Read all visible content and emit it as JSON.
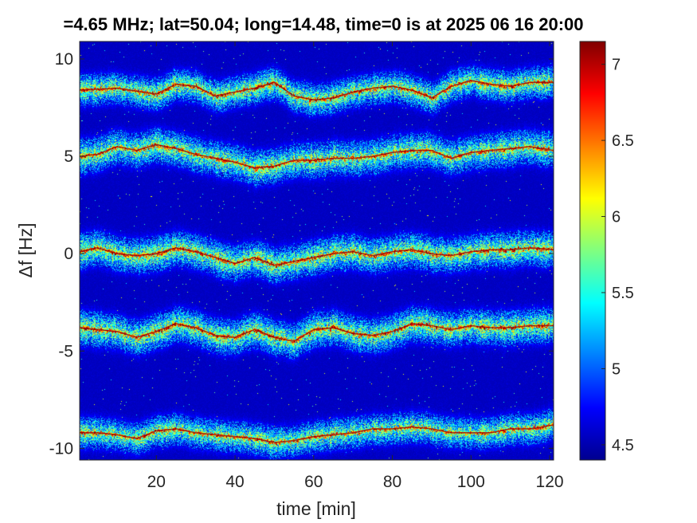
{
  "chart_data": {
    "type": "heatmap",
    "title": "=4.65 MHz;  lat=50.04; long=14.48, time=0 is at 2025 06 16 20:00",
    "xlabel": "time [min]",
    "ylabel": "Δf [Hz]",
    "xlim": [
      0.5,
      121
    ],
    "ylim": [
      -10.6,
      10.9
    ],
    "x_ticks": [
      20,
      40,
      60,
      80,
      100,
      120
    ],
    "y_ticks": [
      10,
      5,
      0,
      -5,
      -10
    ],
    "colorbar": {
      "colormap": "jet",
      "range": [
        4.4,
        7.15
      ],
      "ticks": [
        7,
        6.5,
        6,
        5.5,
        5,
        4.5
      ],
      "background_color": "#00008F"
    },
    "ridges": [
      {
        "name": "",
        "points": [
          [
            0.5,
            8.4
          ],
          [
            10,
            8.5
          ],
          [
            20,
            8.2
          ],
          [
            25,
            8.7
          ],
          [
            30,
            8.6
          ],
          [
            35,
            8.1
          ],
          [
            40,
            8.3
          ],
          [
            45,
            8.5
          ],
          [
            50,
            8.8
          ],
          [
            55,
            8.1
          ],
          [
            60,
            7.9
          ],
          [
            65,
            8.0
          ],
          [
            70,
            8.3
          ],
          [
            75,
            8.5
          ],
          [
            80,
            8.6
          ],
          [
            85,
            8.4
          ],
          [
            90,
            8.0
          ],
          [
            95,
            8.6
          ],
          [
            100,
            8.9
          ],
          [
            105,
            8.7
          ],
          [
            110,
            8.6
          ],
          [
            115,
            8.8
          ],
          [
            121,
            8.8
          ]
        ],
        "width": 0.45,
        "intensity": 1.0
      },
      {
        "name": "",
        "points": [
          [
            0.5,
            5.0
          ],
          [
            5,
            5.1
          ],
          [
            10,
            5.5
          ],
          [
            15,
            5.3
          ],
          [
            20,
            5.6
          ],
          [
            25,
            5.4
          ],
          [
            30,
            5.1
          ],
          [
            35,
            4.9
          ],
          [
            40,
            4.7
          ],
          [
            45,
            4.4
          ],
          [
            50,
            4.5
          ],
          [
            55,
            4.8
          ],
          [
            60,
            4.8
          ],
          [
            65,
            4.9
          ],
          [
            70,
            4.9
          ],
          [
            75,
            5.0
          ],
          [
            80,
            5.2
          ],
          [
            85,
            5.3
          ],
          [
            90,
            5.3
          ],
          [
            95,
            4.9
          ],
          [
            100,
            5.2
          ],
          [
            105,
            5.3
          ],
          [
            110,
            5.4
          ],
          [
            115,
            5.5
          ],
          [
            121,
            5.3
          ]
        ],
        "width": 0.5,
        "intensity": 0.95
      },
      {
        "name": "",
        "points": [
          [
            0.5,
            0.1
          ],
          [
            5,
            0.3
          ],
          [
            10,
            0.0
          ],
          [
            15,
            -0.1
          ],
          [
            20,
            0.0
          ],
          [
            25,
            0.3
          ],
          [
            30,
            0.1
          ],
          [
            35,
            -0.2
          ],
          [
            40,
            -0.5
          ],
          [
            45,
            -0.2
          ],
          [
            50,
            -0.6
          ],
          [
            55,
            -0.4
          ],
          [
            60,
            -0.2
          ],
          [
            65,
            0.0
          ],
          [
            70,
            0.1
          ],
          [
            75,
            -0.1
          ],
          [
            80,
            0.1
          ],
          [
            85,
            0.2
          ],
          [
            90,
            0.0
          ],
          [
            95,
            -0.1
          ],
          [
            100,
            0.1
          ],
          [
            105,
            0.2
          ],
          [
            110,
            0.2
          ],
          [
            115,
            0.3
          ],
          [
            121,
            0.2
          ]
        ],
        "width": 0.5,
        "intensity": 1.0
      },
      {
        "name": "",
        "points": [
          [
            0.5,
            -3.8
          ],
          [
            5,
            -3.9
          ],
          [
            10,
            -4.0
          ],
          [
            15,
            -4.3
          ],
          [
            20,
            -4.0
          ],
          [
            25,
            -3.6
          ],
          [
            30,
            -3.8
          ],
          [
            35,
            -4.2
          ],
          [
            40,
            -4.3
          ],
          [
            45,
            -3.9
          ],
          [
            50,
            -4.3
          ],
          [
            55,
            -4.5
          ],
          [
            60,
            -3.9
          ],
          [
            65,
            -3.8
          ],
          [
            70,
            -4.1
          ],
          [
            75,
            -4.2
          ],
          [
            80,
            -4.0
          ],
          [
            85,
            -3.6
          ],
          [
            90,
            -3.7
          ],
          [
            95,
            -3.9
          ],
          [
            100,
            -3.7
          ],
          [
            105,
            -3.8
          ],
          [
            110,
            -3.8
          ],
          [
            115,
            -3.7
          ],
          [
            121,
            -3.7
          ]
        ],
        "width": 0.5,
        "intensity": 1.0
      },
      {
        "name": "",
        "points": [
          [
            0.5,
            -9.2
          ],
          [
            5,
            -9.2
          ],
          [
            10,
            -9.3
          ],
          [
            15,
            -9.5
          ],
          [
            20,
            -9.1
          ],
          [
            25,
            -9.0
          ],
          [
            30,
            -9.2
          ],
          [
            35,
            -9.3
          ],
          [
            40,
            -9.4
          ],
          [
            45,
            -9.5
          ],
          [
            50,
            -9.7
          ],
          [
            55,
            -9.6
          ],
          [
            60,
            -9.4
          ],
          [
            65,
            -9.3
          ],
          [
            70,
            -9.2
          ],
          [
            75,
            -9.0
          ],
          [
            80,
            -9.0
          ],
          [
            85,
            -8.9
          ],
          [
            90,
            -9.0
          ],
          [
            95,
            -9.2
          ],
          [
            100,
            -9.2
          ],
          [
            105,
            -9.2
          ],
          [
            110,
            -9.0
          ],
          [
            115,
            -9.0
          ],
          [
            121,
            -8.8
          ]
        ],
        "width": 0.45,
        "intensity": 0.95
      }
    ]
  }
}
